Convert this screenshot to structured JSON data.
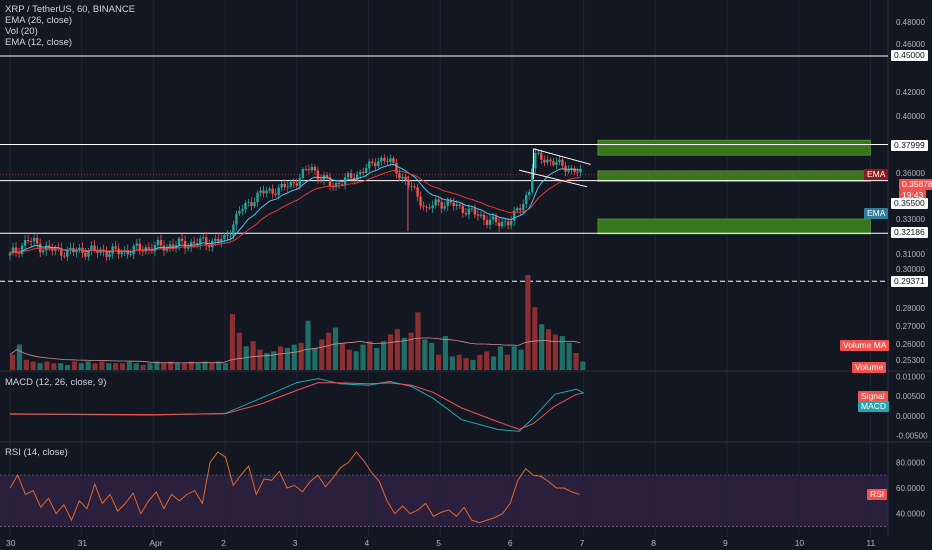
{
  "main_legend": {
    "symbol": "XRP / TetherUS, 60, BINANCE",
    "ema26": "EMA (26, close)",
    "vol": "Vol (20)",
    "ema12": "EMA (12, close)"
  },
  "macd_legend": "MACD (12, 26, close, 9)",
  "rsi_legend": "RSI (14, close)",
  "colors": {
    "background": "#131722",
    "up": "#26a69a",
    "down": "#ef5350",
    "ema": "#4fc3f7",
    "box": "#38761d",
    "rsi_band": "#2a1f3d"
  },
  "badges": {
    "level_045": "0.45000",
    "level_038": "0.37999",
    "ema_tag": "EMA",
    "last_price": "0.35878",
    "countdown": "19:43",
    "level_0355": "0.35500",
    "ema_tag2": "EMA",
    "level_0322": "0.32186",
    "level_0294": "0.29371",
    "vol_ma": "Volume MA",
    "volume": "Volume",
    "signal": "Signal",
    "macd": "MACD",
    "rsi": "RSI"
  },
  "chart_data": [
    {
      "type": "candlestick",
      "title": "XRP / TetherUS, 60, BINANCE",
      "x_ticks": [
        "30",
        "31",
        "Apr",
        "2",
        "3",
        "4",
        "5",
        "6",
        "7",
        "8",
        "9",
        "10",
        "11"
      ],
      "y_ticks": [
        "0.48000",
        "0.46000",
        "0.42000",
        "0.40000",
        "0.36000",
        "0.33000",
        "0.31000",
        "0.30000",
        "0.28000",
        "0.27000",
        "0.26000",
        "0.25300"
      ],
      "ylim": [
        0.25,
        0.49
      ],
      "horizontal_levels": [
        0.45,
        0.37999,
        0.355,
        0.32186,
        0.29371
      ],
      "ohlc_close_path_days": [
        [
          0.0,
          0.309
        ],
        [
          0.25,
          0.318
        ],
        [
          0.5,
          0.313
        ],
        [
          0.8,
          0.311
        ],
        [
          1.0,
          0.312
        ],
        [
          1.5,
          0.311
        ],
        [
          2.0,
          0.314
        ],
        [
          2.5,
          0.316
        ],
        [
          3.0,
          0.318
        ],
        [
          3.2,
          0.335
        ],
        [
          3.5,
          0.347
        ],
        [
          3.8,
          0.35
        ],
        [
          4.0,
          0.355
        ],
        [
          4.2,
          0.365
        ],
        [
          4.3,
          0.358
        ],
        [
          4.5,
          0.352
        ],
        [
          4.8,
          0.358
        ],
        [
          5.0,
          0.364
        ],
        [
          5.15,
          0.37
        ],
        [
          5.3,
          0.368
        ],
        [
          5.5,
          0.355
        ],
        [
          5.7,
          0.345
        ],
        [
          5.8,
          0.335
        ],
        [
          5.95,
          0.341
        ],
        [
          6.2,
          0.339
        ],
        [
          6.5,
          0.333
        ],
        [
          6.8,
          0.327
        ],
        [
          7.0,
          0.33
        ],
        [
          7.15,
          0.34
        ],
        [
          7.25,
          0.35
        ],
        [
          7.3,
          0.372
        ],
        [
          7.5,
          0.369
        ],
        [
          7.8,
          0.363
        ],
        [
          8.0,
          0.359
        ]
      ],
      "target_boxes": [
        {
          "from_day": 8.2,
          "to_day": 12.0,
          "low": 0.3725,
          "high": 0.383
        },
        {
          "from_day": 8.2,
          "to_day": 12.0,
          "low": 0.3545,
          "high": 0.3615
        },
        {
          "from_day": 8.2,
          "to_day": 12.0,
          "low": 0.3215,
          "high": 0.33
        }
      ],
      "last_price": 0.35878
    },
    {
      "type": "bar",
      "title": "Vol (20)",
      "values": [
        9,
        15,
        6,
        5,
        4,
        5,
        4,
        4,
        3,
        5,
        4,
        5,
        4,
        5,
        4,
        4,
        4,
        5,
        4,
        3,
        4,
        5,
        4,
        5,
        4,
        4,
        5,
        4,
        5,
        4,
        5,
        4,
        33,
        22,
        14,
        17,
        12,
        10,
        11,
        14,
        13,
        15,
        16,
        29,
        13,
        18,
        22,
        25,
        16,
        12,
        11,
        15,
        17,
        13,
        17,
        21,
        24,
        19,
        22,
        34,
        18,
        16,
        9,
        20,
        8,
        9,
        7,
        6,
        9,
        11,
        8,
        14,
        9,
        14,
        12,
        56,
        37,
        27,
        24,
        21,
        20,
        16,
        10,
        5
      ]
    },
    {
      "type": "line",
      "title": "MACD (12, 26, close, 9)",
      "y_ticks": [
        "0.01000",
        "0.00500",
        "0.00000",
        "-0.00500"
      ],
      "ylim": [
        -0.0062,
        0.0112
      ],
      "series": [
        {
          "name": "MACD",
          "points": [
            [
              0,
              0.0005
            ],
            [
              1,
              0.0003
            ],
            [
              2,
              0.0002
            ],
            [
              3,
              0.0006
            ],
            [
              3.5,
              0.0045
            ],
            [
              4,
              0.0085
            ],
            [
              4.3,
              0.0095
            ],
            [
              4.6,
              0.0082
            ],
            [
              5,
              0.0078
            ],
            [
              5.3,
              0.0088
            ],
            [
              5.6,
              0.0075
            ],
            [
              5.9,
              0.0045
            ],
            [
              6.3,
              -0.001
            ],
            [
              6.8,
              -0.0035
            ],
            [
              7.1,
              -0.004
            ],
            [
              7.3,
              -0.0005
            ],
            [
              7.6,
              0.0055
            ],
            [
              7.9,
              0.0068
            ],
            [
              8.0,
              0.0058
            ]
          ]
        },
        {
          "name": "Signal",
          "points": [
            [
              0,
              0.0004
            ],
            [
              1,
              0.0004
            ],
            [
              2,
              0.0003
            ],
            [
              3,
              0.0005
            ],
            [
              3.5,
              0.003
            ],
            [
              4,
              0.0065
            ],
            [
              4.3,
              0.0085
            ],
            [
              4.6,
              0.0084
            ],
            [
              5,
              0.0082
            ],
            [
              5.3,
              0.0084
            ],
            [
              5.6,
              0.0078
            ],
            [
              5.9,
              0.006
            ],
            [
              6.3,
              0.002
            ],
            [
              6.8,
              -0.0015
            ],
            [
              7.1,
              -0.0035
            ],
            [
              7.3,
              -0.002
            ],
            [
              7.6,
              0.0025
            ],
            [
              7.9,
              0.0055
            ],
            [
              8.0,
              0.0058
            ]
          ]
        }
      ]
    },
    {
      "type": "line",
      "title": "RSI (14, close)",
      "y_ticks": [
        "80.0000",
        "60.0000",
        "40.0000"
      ],
      "ylim": [
        25,
        95
      ],
      "bands": [
        30,
        70
      ],
      "series": [
        {
          "name": "RSI",
          "values": [
            60,
            70,
            55,
            58,
            45,
            52,
            40,
            47,
            35,
            50,
            44,
            63,
            48,
            55,
            42,
            48,
            56,
            40,
            50,
            57,
            44,
            55,
            50,
            55,
            58,
            48,
            80,
            88,
            84,
            62,
            70,
            77,
            55,
            67,
            66,
            73,
            60,
            62,
            57,
            65,
            70,
            61,
            68,
            76,
            80,
            88,
            81,
            72,
            65,
            50,
            40,
            46,
            40,
            43,
            48,
            38,
            41,
            43,
            38,
            45,
            35,
            33,
            35,
            37,
            40,
            48,
            66,
            75,
            70,
            69,
            65,
            60,
            60,
            57,
            55
          ]
        }
      ]
    }
  ]
}
